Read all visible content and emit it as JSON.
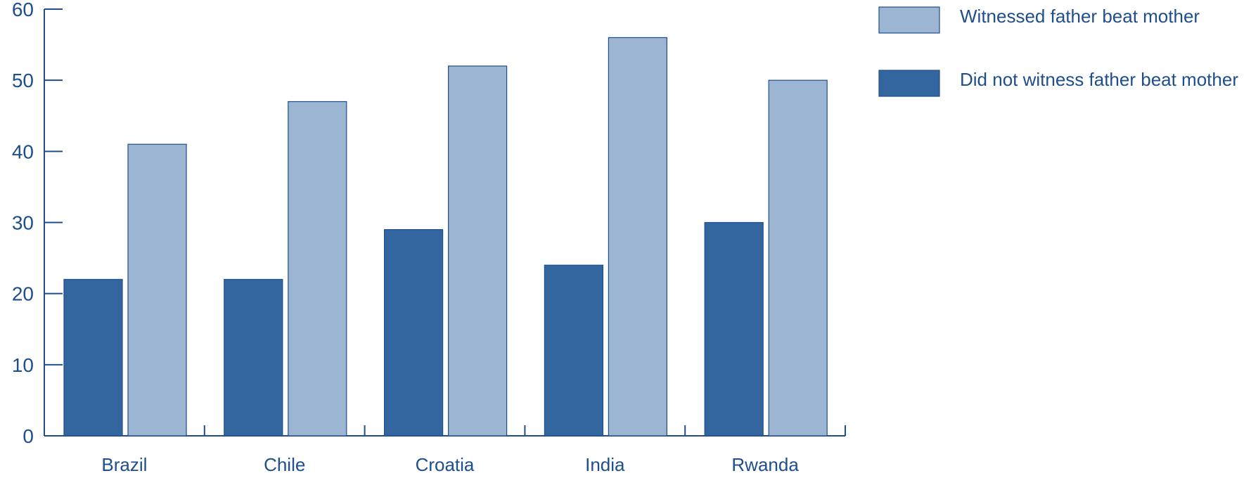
{
  "chart_data": {
    "type": "bar",
    "title": "",
    "xlabel": "",
    "ylabel": "",
    "ylim": [
      0,
      60
    ],
    "yticks": [
      0,
      10,
      20,
      30,
      40,
      50,
      60
    ],
    "ytick_labels": [
      "0",
      "10",
      "20",
      "30",
      "40",
      "50",
      "60"
    ],
    "categories": [
      "Brazil",
      "Chile",
      "Croatia",
      "India",
      "Rwanda"
    ],
    "series": [
      {
        "name": "Did not witness father beat mother",
        "values": [
          22,
          22,
          29,
          24,
          30
        ]
      },
      {
        "name": "Witnessed father beat mother",
        "values": [
          41,
          47,
          52,
          56,
          50
        ]
      }
    ],
    "legend_order": [
      1,
      0
    ],
    "legend_position": "top-right",
    "grid": false
  },
  "colors": {
    "text": "#1f4e8c",
    "axis": "#1f4e8c",
    "series": [
      "#33669e",
      "#9bb5d3"
    ],
    "bar_edge": "#1f4e8c"
  }
}
